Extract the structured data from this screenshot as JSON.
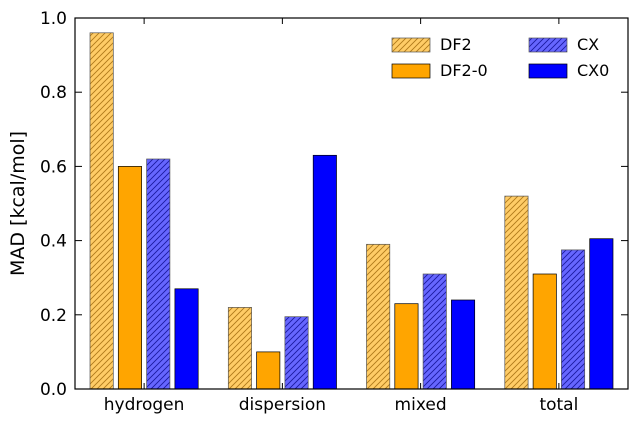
{
  "chart_data": {
    "type": "bar",
    "categories": [
      "hydrogen",
      "dispersion",
      "mixed",
      "total"
    ],
    "series": [
      {
        "name": "DF2",
        "values": [
          0.96,
          0.22,
          0.39,
          0.52
        ],
        "color": "#ffcc66",
        "hatched": true
      },
      {
        "name": "DF2-0",
        "values": [
          0.6,
          0.1,
          0.23,
          0.31
        ],
        "color": "#ffa500",
        "hatched": false
      },
      {
        "name": "CX",
        "values": [
          0.62,
          0.195,
          0.31,
          0.375
        ],
        "color": "#6666ff",
        "hatched": true
      },
      {
        "name": "CX0",
        "values": [
          0.27,
          0.63,
          0.24,
          0.405
        ],
        "color": "#0000ff",
        "hatched": false
      }
    ],
    "xlabel": "",
    "ylabel": "MAD [kcal/mol]",
    "ylim": [
      0.0,
      1.0
    ],
    "yticks": [
      "0.0",
      "0.2",
      "0.4",
      "0.6",
      "0.8",
      "1.0"
    ],
    "grid": false,
    "legend_position": "top-right"
  }
}
